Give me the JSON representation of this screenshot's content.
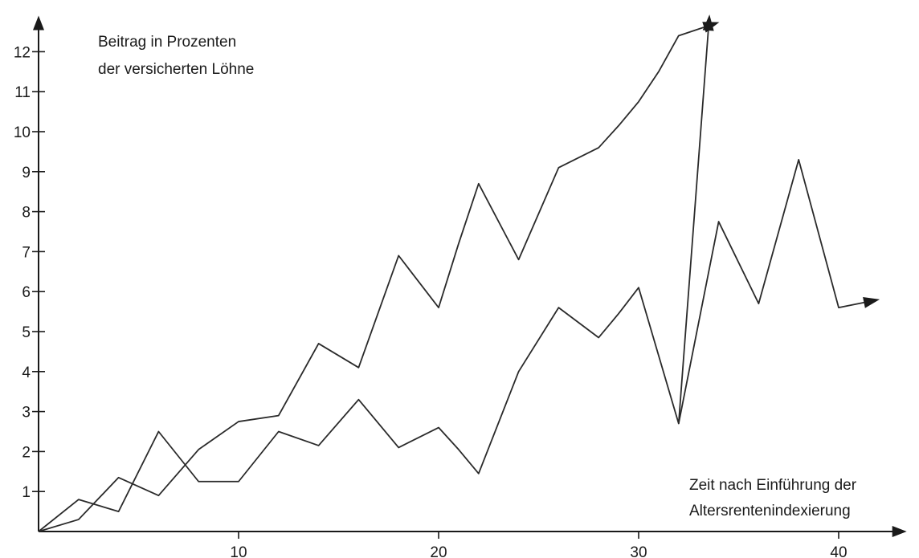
{
  "chart_data": {
    "type": "line",
    "ylabel_lines": [
      "Beitrag in Prozenten",
      "der versicherten Löhne"
    ],
    "xlabel_lines": [
      "Zeit nach Einführung der",
      "Altersrentenindexierung"
    ],
    "xlim": [
      0,
      43
    ],
    "ylim": [
      0,
      12.5
    ],
    "x_ticks": [
      10,
      20,
      30,
      40
    ],
    "y_ticks": [
      1,
      2,
      3,
      4,
      5,
      6,
      7,
      8,
      9,
      10,
      11,
      12
    ],
    "series": [
      {
        "x": [
          0,
          2,
          4,
          6,
          8,
          10,
          12,
          14,
          16,
          18,
          20,
          21,
          22,
          24,
          26,
          28,
          29,
          30,
          31,
          32,
          33.5
        ],
        "values": [
          0,
          0.8,
          0.5,
          2.5,
          1.25,
          1.25,
          2.5,
          2.15,
          3.3,
          2.1,
          2.6,
          2.05,
          1.45,
          4.0,
          5.6,
          4.85,
          5.45,
          6.1,
          4.4,
          2.7,
          12.65
        ]
      },
      {
        "x": [
          0,
          2,
          4,
          6,
          8,
          10,
          12,
          14,
          16,
          18,
          20,
          21,
          22,
          24,
          26,
          28,
          29,
          30,
          31,
          32,
          33.5
        ],
        "values": [
          0,
          0.3,
          1.35,
          0.9,
          2.05,
          2.75,
          2.9,
          4.7,
          4.1,
          6.9,
          5.6,
          7.2,
          8.7,
          6.8,
          9.1,
          9.6,
          10.15,
          10.75,
          11.5,
          12.4,
          12.65
        ]
      }
    ],
    "series_tail": {
      "x": [
        32,
        34,
        36,
        38,
        40,
        41.5
      ],
      "values": [
        2.7,
        7.75,
        5.7,
        9.3,
        5.6,
        5.75
      ]
    }
  }
}
